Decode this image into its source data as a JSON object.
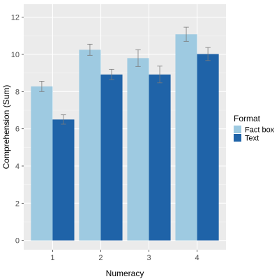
{
  "chart_data": {
    "type": "bar",
    "xlabel": "Numeracy",
    "ylabel": "Comprehension (Sum)",
    "categories": [
      "1",
      "2",
      "3",
      "4"
    ],
    "ylim": [
      -0.5,
      12.7
    ],
    "yticks": [
      0,
      2,
      4,
      6,
      8,
      10,
      12
    ],
    "grid": true,
    "legend": {
      "title": "Format",
      "position": "right"
    },
    "series": [
      {
        "name": "Fact box",
        "color": "#9ecae1",
        "values": [
          8.28,
          10.25,
          9.8,
          11.08
        ],
        "errors": [
          0.28,
          0.3,
          0.45,
          0.38
        ]
      },
      {
        "name": "Text",
        "color": "#1f63a8",
        "values": [
          6.5,
          8.92,
          8.92,
          10.02
        ],
        "errors": [
          0.25,
          0.28,
          0.45,
          0.35
        ]
      }
    ]
  }
}
